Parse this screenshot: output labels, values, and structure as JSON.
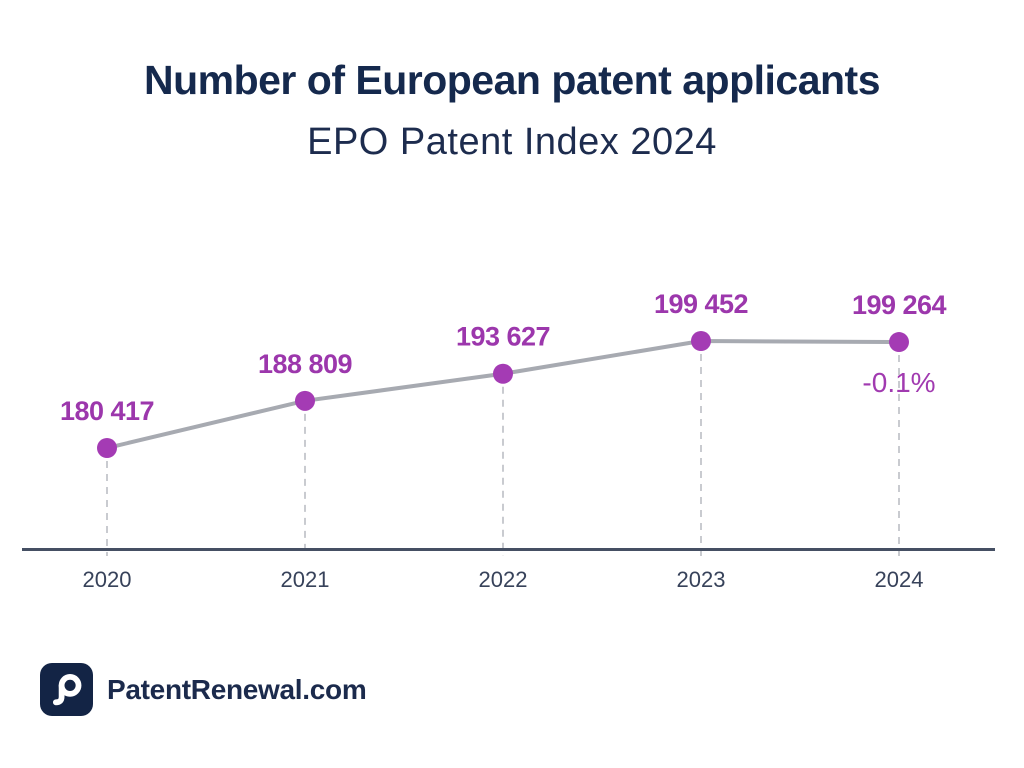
{
  "header": {
    "title": "Number of European patent applicants",
    "subtitle": "EPO Patent Index 2024"
  },
  "chart_data": {
    "type": "line",
    "title": "Number of European patent applicants",
    "subtitle": "EPO Patent Index 2024",
    "categories": [
      "2020",
      "2021",
      "2022",
      "2023",
      "2024"
    ],
    "series": [
      {
        "name": "European patent applicants",
        "values": [
          180417,
          188809,
          193627,
          199452,
          199264
        ]
      }
    ],
    "point_labels": [
      "180 417",
      "188 809",
      "193 627",
      "199 452",
      "199 264"
    ],
    "annotation": {
      "text": "-0.1%",
      "attached_to": "2024"
    },
    "grid": false,
    "legend": false,
    "colors": {
      "point": "#A43BB4",
      "value_label": "#9C37AC",
      "annotation": "#A13AB0",
      "line": "#A7AAB1",
      "dashed_guide": "#C9CBD0",
      "axis": "#454F63",
      "tick_label": "#37425A"
    }
  },
  "footer": {
    "brand": "PatentRenewal.com",
    "logo_icon": "magnifier-p"
  }
}
